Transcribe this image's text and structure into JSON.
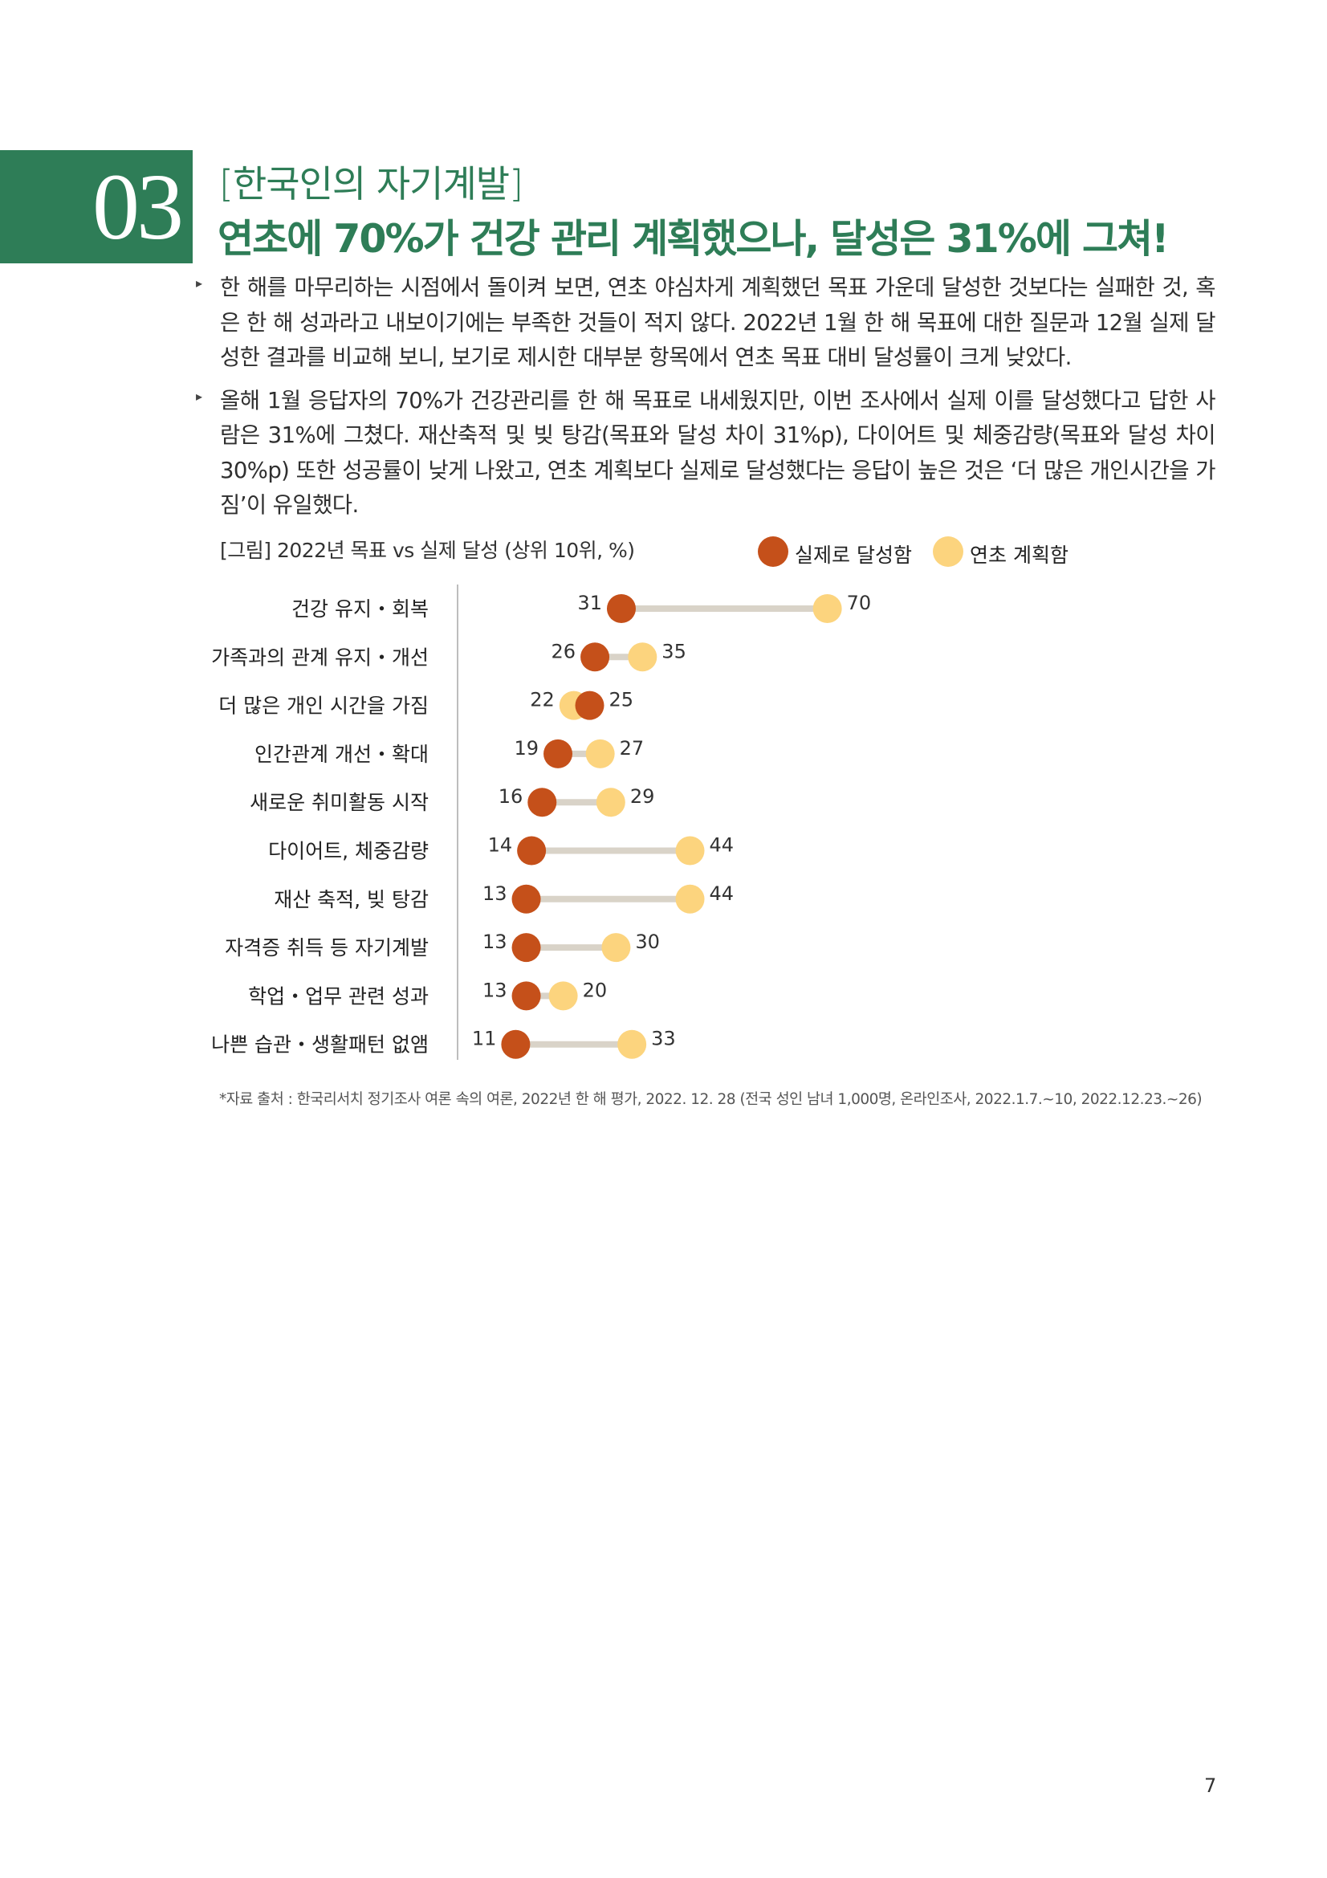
{
  "section": {
    "number": "03",
    "kicker": "[한국인의 자기계발]",
    "title": "연초에 70%가 건강 관리 계획했으나, 달성은 31%에 그쳐!"
  },
  "bullets": [
    "한 해를 마무리하는 시점에서 돌이켜 보면, 연초 야심차게 계획했던 목표 가운데 달성한 것보다는 실패한 것, 혹은 한 해 성과라고 내보이기에는 부족한 것들이 적지 않다. 2022년 1월 한 해 목표에 대한 질문과 12월 실제 달성한 결과를 비교해 보니, 보기로 제시한 대부분 항목에서 연초 목표 대비 달성률이 크게 낮았다.",
    "올해 1월 응답자의 70%가 건강관리를 한 해 목표로 내세웠지만, 이번 조사에서 실제 이를 달성했다고 답한 사람은 31%에 그쳤다. 재산축적 및 빚 탕감(목표와 달성 차이 31%p), 다이어트 및 체중감량(목표와 달성 차이 30%p) 또한 성공률이 낮게 나왔고, 연초 계획보다 실제로 달성했다는 응답이 높은 것은 ‘더 많은 개인시간을 가짐’이 유일했다."
  ],
  "figure": {
    "caption": "[그림] 2022년 목표 vs 실제 달성 (상위 10위, %)",
    "legend": [
      {
        "label": "실제로 달성함",
        "color": "#c5501a"
      },
      {
        "label": "연초 계획함",
        "color": "#fcd47e"
      }
    ]
  },
  "chart_data": {
    "type": "dumbbell",
    "categories": [
      "건강 유지・회복",
      "가족과의 관계 유지・개선",
      "더 많은 개인 시간을 가짐",
      "인간관계 개선・확대",
      "새로운 취미활동 시작",
      "다이어트, 체중감량",
      "재산 축적, 빚 탕감",
      "자격증 취득 등 자기계발",
      "학업・업무 관련 성과",
      "나쁜 습관・생활패턴 없앰"
    ],
    "series": [
      {
        "name": "실제로 달성함",
        "color": "#c5501a",
        "values": [
          31,
          26,
          25,
          19,
          16,
          14,
          13,
          13,
          13,
          11
        ]
      },
      {
        "name": "연초 계획함",
        "color": "#fcd47e",
        "values": [
          70,
          35,
          22,
          27,
          29,
          44,
          44,
          30,
          20,
          33
        ]
      }
    ],
    "connector_color": "#d9d3c8",
    "axis_line_color": "#bdbdbd"
  },
  "source": "*자료 출처 : 한국리서치 정기조사 여론 속의 여론, 2022년 한 해 평가, 2022. 12. 28 (전국 성인 남녀 1,000명, 온라인조사, 2022.1.7.~10, 2022.12.23.~26)",
  "page_number": "7"
}
